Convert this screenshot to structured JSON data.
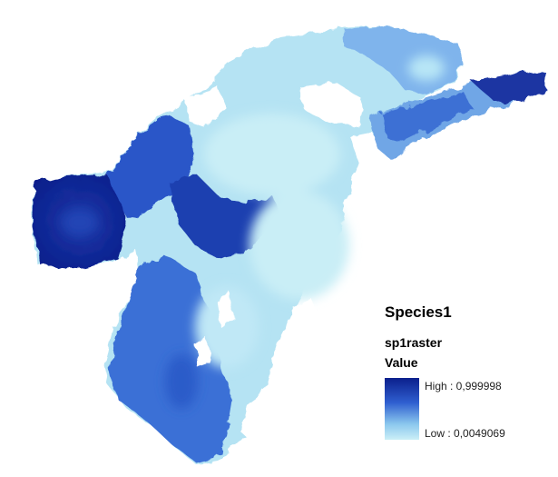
{
  "map": {
    "colors": {
      "high": "#0b1f8c",
      "mid_high": "#2f5fd0",
      "mid": "#5f9ce6",
      "mid_low": "#9fd0ec",
      "low": "#c9eef6",
      "background": "#ffffff"
    }
  },
  "legend": {
    "title": "Species1",
    "layer": "sp1raster",
    "field": "Value",
    "high_label": "High : 0,999998",
    "low_label": "Low : 0,0049069",
    "high_value": 0.999998,
    "low_value": 0.0049069
  }
}
